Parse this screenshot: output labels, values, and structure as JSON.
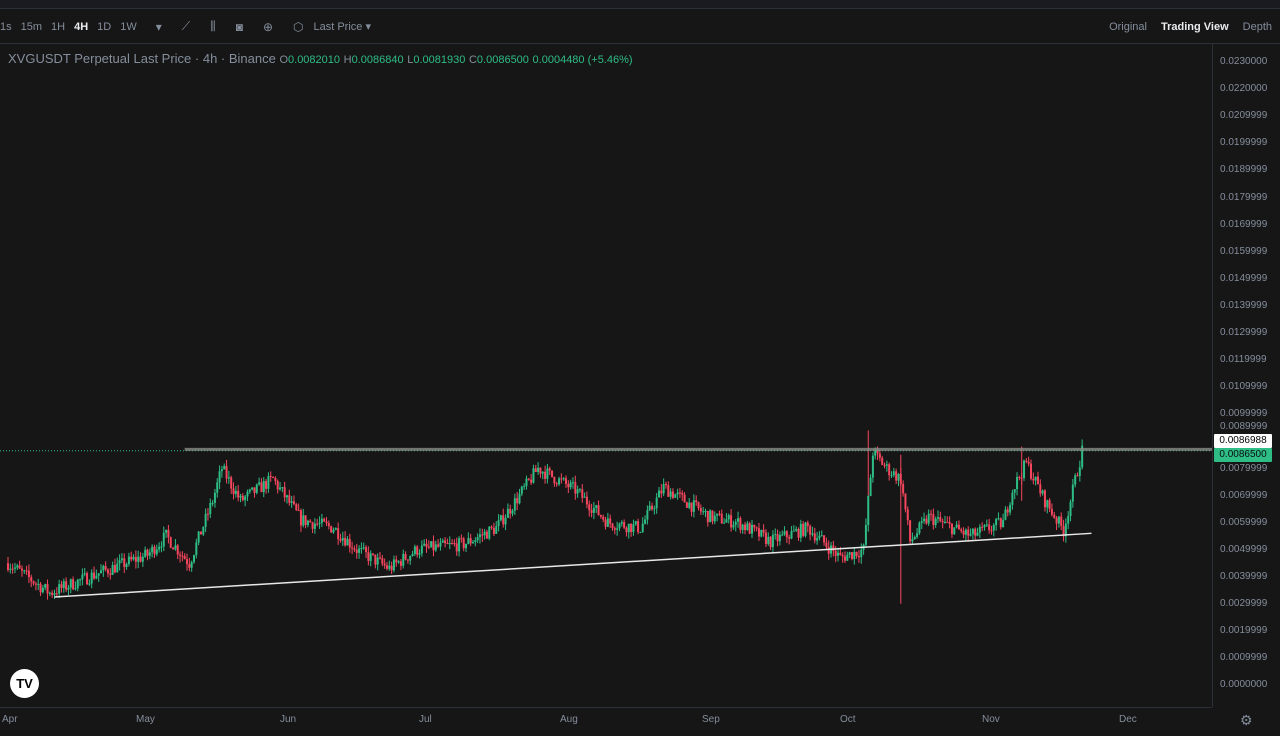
{
  "toolbar": {
    "intervals": [
      "1s",
      "15m",
      "1H",
      "4H",
      "1D",
      "1W"
    ],
    "active_interval": "4H",
    "price_type": "Last Price",
    "views": [
      "Original",
      "Trading View",
      "Depth"
    ],
    "active_view": "Trading View"
  },
  "legend": {
    "title": "XVGUSDT Perpetual Last Price · 4h · Binance",
    "o_label": "O",
    "o": "0.0082010",
    "h_label": "H",
    "h": "0.0086840",
    "l_label": "L",
    "l": "0.0081930",
    "c_label": "C",
    "c": "0.0086500",
    "change": "0.0004480 (+5.46%)"
  },
  "y_axis": [
    "0.0230000",
    "0.0220000",
    "0.0209999",
    "0.0199999",
    "0.0189999",
    "0.0179999",
    "0.0169999",
    "0.0159999",
    "0.0149999",
    "0.0139999",
    "0.0129999",
    "0.0119999",
    "0.0109999",
    "0.0099999",
    "0.0089999",
    "0.0079999",
    "0.0069999",
    "0.0059999",
    "0.0049999",
    "0.0039999",
    "0.0029999",
    "0.0019999",
    "0.0009999",
    "0.0000000"
  ],
  "x_axis": [
    "Apr",
    "May",
    "Jun",
    "Jul",
    "Aug",
    "Sep",
    "Oct",
    "Nov",
    "Dec"
  ],
  "tags": {
    "line_price": "0.0086988",
    "last_price": "0.0086500"
  },
  "colors": {
    "up": "#2ebd85",
    "down": "#f6465d",
    "background": "#161616"
  },
  "price_path": [
    [
      "Apr 1",
      0.0045
    ],
    [
      "Apr 10",
      0.0034
    ],
    [
      "Apr 20",
      0.0041
    ],
    [
      "May 1",
      0.0048
    ],
    [
      "May 5",
      0.0055
    ],
    [
      "May 10",
      0.0045
    ],
    [
      "May 15",
      0.0068
    ],
    [
      "May 17",
      0.008
    ],
    [
      "May 21",
      0.0068
    ],
    [
      "May 28",
      0.0076
    ],
    [
      "Jun 3",
      0.0061
    ],
    [
      "Jun 10",
      0.0058
    ],
    [
      "Jun 15",
      0.005
    ],
    [
      "Jun 22",
      0.0043
    ],
    [
      "Jun 28",
      0.005
    ],
    [
      "Jul 8",
      0.0052
    ],
    [
      "Jul 15",
      0.0058
    ],
    [
      "Jul 20",
      0.007
    ],
    [
      "Jul 24",
      0.008
    ],
    [
      "Aug 1",
      0.0072
    ],
    [
      "Aug 8",
      0.006
    ],
    [
      "Aug 15",
      0.0058
    ],
    [
      "Aug 20",
      0.0073
    ],
    [
      "Aug 30",
      0.0062
    ],
    [
      "Sep 5",
      0.006
    ],
    [
      "Sep 12",
      0.0053
    ],
    [
      "Sep 20",
      0.0058
    ],
    [
      "Sep 27",
      0.0047
    ],
    [
      "Oct 2",
      0.005
    ],
    [
      "Oct 4",
      0.0086
    ],
    [
      "Oct 7",
      0.008
    ],
    [
      "Oct 10",
      0.0076
    ],
    [
      "Oct 12",
      0.0053
    ],
    [
      "Oct 16",
      0.0062
    ],
    [
      "Oct 25",
      0.0055
    ],
    [
      "Nov 1",
      0.006
    ],
    [
      "Nov 3",
      0.0072
    ],
    [
      "Nov 6",
      0.0082
    ],
    [
      "Nov 10",
      0.0068
    ],
    [
      "Nov 14",
      0.0057
    ],
    [
      "Nov 18",
      0.00865
    ]
  ],
  "drawings": {
    "resistance": {
      "price": 0.0086988,
      "from": "May 9"
    },
    "support": {
      "from": [
        "Apr 11",
        0.00325
      ],
      "to": [
        "Nov 20",
        0.0056
      ]
    }
  }
}
